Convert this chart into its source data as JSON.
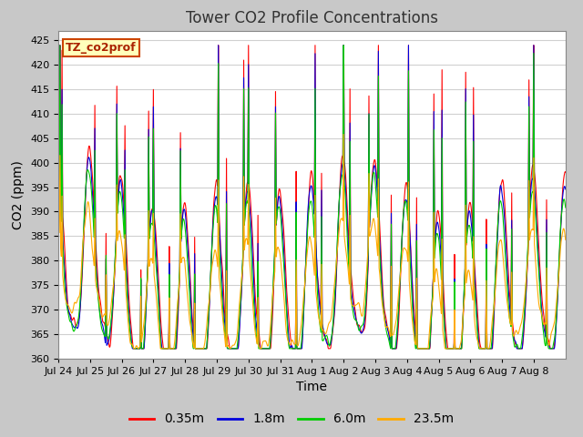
{
  "title": "Tower CO2 Profile Concentrations",
  "ylabel": "CO2 (ppm)",
  "xlabel": "Time",
  "label_text": "TZ_co2prof",
  "ylim": [
    360,
    427
  ],
  "yticks": [
    360,
    365,
    370,
    375,
    380,
    385,
    390,
    395,
    400,
    405,
    410,
    415,
    420,
    425
  ],
  "series_colors": [
    "#ff0000",
    "#0000dd",
    "#00cc00",
    "#ffaa00"
  ],
  "series_labels": [
    "0.35m",
    "1.8m",
    "6.0m",
    "23.5m"
  ],
  "xtick_labels": [
    "Jul 24",
    "Jul 25",
    "Jul 26",
    "Jul 27",
    "Jul 28",
    "Jul 29",
    "Jul 30",
    "Jul 31",
    "Aug 1",
    "Aug 2",
    "Aug 3",
    "Aug 4",
    "Aug 5",
    "Aug 6",
    "Aug 7",
    "Aug 8"
  ],
  "fig_bg_color": "#c8c8c8",
  "plot_bg_color": "#ffffff",
  "n_points": 1500,
  "num_days": 16,
  "title_fontsize": 12,
  "axis_fontsize": 10,
  "tick_fontsize": 8,
  "legend_fontsize": 10,
  "linewidth": 0.8
}
